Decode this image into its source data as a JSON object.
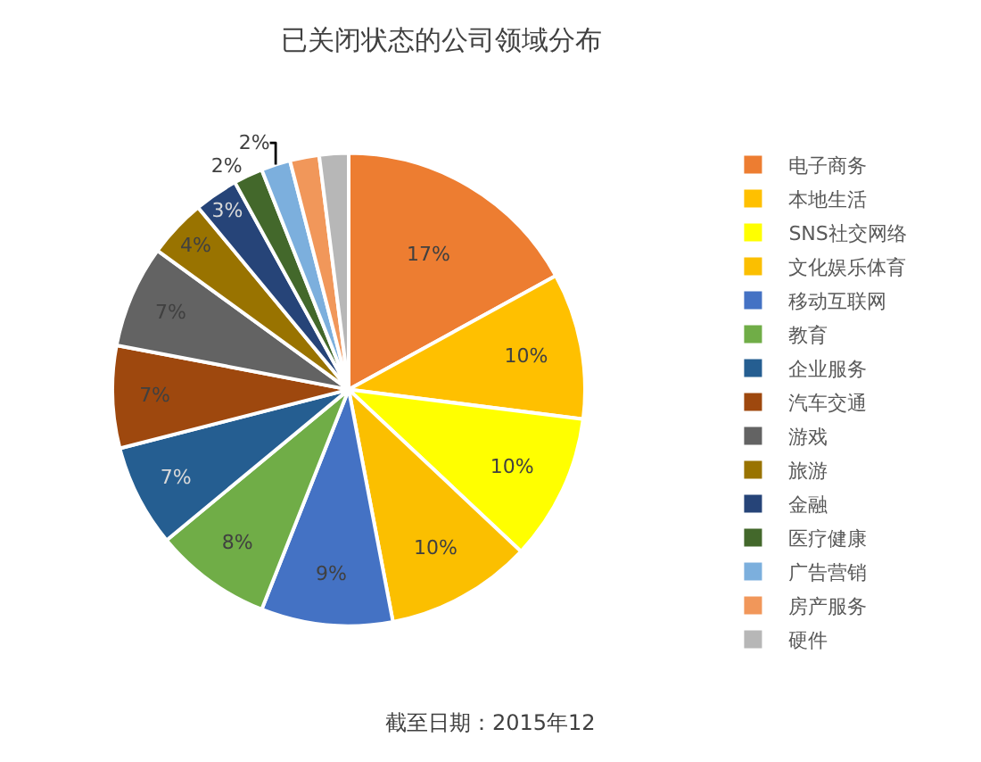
{
  "chart_data": {
    "type": "pie",
    "title": "已关闭状态的公司领域分布",
    "categories": [
      "电子商务",
      "本地生活",
      "SNS社交网络",
      "文化娱乐体育",
      "移动互联网",
      "教育",
      "企业服务",
      "汽车交通",
      "游戏",
      "旅游",
      "金融",
      "医疗健康",
      "广告营销",
      "房产服务",
      "硬件"
    ],
    "values": [
      17,
      10,
      10,
      10,
      9,
      8,
      7,
      7,
      7,
      4,
      3,
      2,
      2,
      2,
      2
    ],
    "value_labels": [
      "17%",
      "10%",
      "10%",
      "10%",
      "9%",
      "8%",
      "7%",
      "7%",
      "7%",
      "4%",
      "3%",
      "2%",
      "2%",
      null,
      null
    ],
    "colors": [
      "#ed7d31",
      "#ffc000",
      "#ffff00",
      "#fbbf00",
      "#4472c4",
      "#70ad47",
      "#255e91",
      "#9e480e",
      "#636363",
      "#997300",
      "#264478",
      "#43682b",
      "#7cafdd",
      "#f1975a",
      "#b7b7b7"
    ],
    "legend": "right",
    "annotations": [
      "截至日期：2015年12"
    ]
  }
}
